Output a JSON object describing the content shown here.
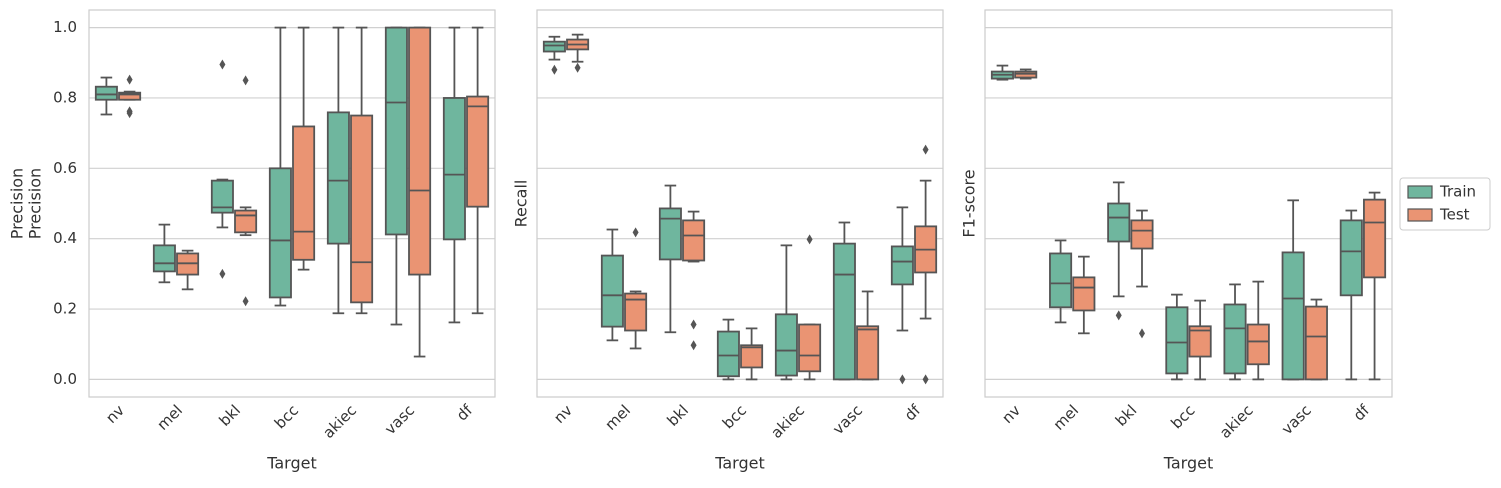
{
  "chart_data": [
    {
      "type": "box",
      "ylabels": [
        "Precision",
        "Precision"
      ],
      "xlabel": "Target",
      "categories": [
        "nv",
        "mel",
        "bkl",
        "bcc",
        "akiec",
        "vasc",
        "df"
      ],
      "ylim": [
        -0.05,
        1.05
      ],
      "yticks": [
        {
          "value": 0,
          "label": "0.0"
        },
        {
          "value": 0.2,
          "label": "0.2"
        },
        {
          "value": 0.4,
          "label": "0.4"
        },
        {
          "value": 0.6,
          "label": "0.6"
        },
        {
          "value": 0.8,
          "label": "0.8"
        },
        {
          "value": 1,
          "label": "1.0"
        }
      ],
      "grid": true,
      "series": [
        {
          "color": "#6fb69e",
          "boxes": [
            {
              "whislo": 0.753,
              "q1": 0.795,
              "med": 0.81,
              "q3": 0.832,
              "whishi": 0.858,
              "fliers": []
            },
            {
              "whislo": 0.276,
              "q1": 0.307,
              "med": 0.33,
              "q3": 0.381,
              "whishi": 0.44,
              "fliers": []
            },
            {
              "whislo": 0.432,
              "q1": 0.474,
              "med": 0.489,
              "q3": 0.565,
              "whishi": 0.568,
              "fliers": [
                0.895,
                0.3
              ]
            },
            {
              "whislo": 0.21,
              "q1": 0.233,
              "med": 0.395,
              "q3": 0.6,
              "whishi": 1,
              "fliers": []
            },
            {
              "whislo": 0.188,
              "q1": 0.386,
              "med": 0.565,
              "q3": 0.759,
              "whishi": 1,
              "fliers": []
            },
            {
              "whislo": 0.156,
              "q1": 0.412,
              "med": 0.787,
              "q3": 1,
              "whishi": 1,
              "fliers": []
            },
            {
              "whislo": 0.162,
              "q1": 0.398,
              "med": 0.582,
              "q3": 0.8,
              "whishi": 1,
              "fliers": []
            }
          ]
        },
        {
          "color": "#ea9473",
          "boxes": [
            {
              "whislo": 0.795,
              "q1": 0.795,
              "med": 0.81,
              "q3": 0.815,
              "whishi": 0.818,
              "fliers": [
                0.852,
                0.762,
                0.757
              ]
            },
            {
              "whislo": 0.256,
              "q1": 0.298,
              "med": 0.33,
              "q3": 0.358,
              "whishi": 0.366,
              "fliers": []
            },
            {
              "whislo": 0.41,
              "q1": 0.418,
              "med": 0.466,
              "q3": 0.48,
              "whishi": 0.489,
              "fliers": [
                0.85,
                0.222
              ]
            },
            {
              "whislo": 0.312,
              "q1": 0.34,
              "med": 0.42,
              "q3": 0.719,
              "whishi": 1,
              "fliers": []
            },
            {
              "whislo": 0.188,
              "q1": 0.219,
              "med": 0.333,
              "q3": 0.75,
              "whishi": 1,
              "fliers": []
            },
            {
              "whislo": 0.065,
              "q1": 0.298,
              "med": 0.537,
              "q3": 1,
              "whishi": 1,
              "fliers": []
            },
            {
              "whislo": 0.188,
              "q1": 0.491,
              "med": 0.776,
              "q3": 0.804,
              "whishi": 1,
              "fliers": []
            }
          ]
        }
      ]
    },
    {
      "type": "box",
      "ylabels": [
        "Recall"
      ],
      "xlabel": "Target",
      "categories": [
        "nv",
        "mel",
        "bkl",
        "bcc",
        "akiec",
        "vasc",
        "df"
      ],
      "ylim": [
        -0.05,
        1.05
      ],
      "yticks": [
        0,
        0.2,
        0.4,
        0.6,
        0.8,
        1
      ],
      "grid": true,
      "series": [
        {
          "color": "#6fb69e",
          "boxes": [
            {
              "whislo": 0.909,
              "q1": 0.932,
              "med": 0.949,
              "q3": 0.96,
              "whishi": 0.974,
              "fliers": [
                0.88
              ]
            },
            {
              "whislo": 0.111,
              "q1": 0.15,
              "med": 0.239,
              "q3": 0.352,
              "whishi": 0.426,
              "fliers": []
            },
            {
              "whislo": 0.134,
              "q1": 0.341,
              "med": 0.457,
              "q3": 0.486,
              "whishi": 0.551,
              "fliers": []
            },
            {
              "whislo": 0,
              "q1": 0.009,
              "med": 0.068,
              "q3": 0.136,
              "whishi": 0.17,
              "fliers": []
            },
            {
              "whislo": 0,
              "q1": 0.011,
              "med": 0.082,
              "q3": 0.185,
              "whishi": 0.381,
              "fliers": []
            },
            {
              "whislo": 0,
              "q1": 0,
              "med": 0.298,
              "q3": 0.386,
              "whishi": 0.446,
              "fliers": []
            },
            {
              "whislo": 0.139,
              "q1": 0.27,
              "med": 0.335,
              "q3": 0.378,
              "whishi": 0.489,
              "fliers": [
                0
              ]
            }
          ]
        },
        {
          "color": "#ea9473",
          "boxes": [
            {
              "whislo": 0.903,
              "q1": 0.938,
              "med": 0.952,
              "q3": 0.966,
              "whishi": 0.98,
              "fliers": [
                0.886
              ]
            },
            {
              "whislo": 0.088,
              "q1": 0.139,
              "med": 0.227,
              "q3": 0.244,
              "whishi": 0.25,
              "fliers": [
                0.418
              ]
            },
            {
              "whislo": 0.335,
              "q1": 0.338,
              "med": 0.409,
              "q3": 0.452,
              "whishi": 0.477,
              "fliers": [
                0.156,
                0.097
              ]
            },
            {
              "whislo": 0,
              "q1": 0.034,
              "med": 0.091,
              "q3": 0.097,
              "whishi": 0.145,
              "fliers": []
            },
            {
              "whislo": 0,
              "q1": 0.023,
              "med": 0.068,
              "q3": 0.156,
              "whishi": 0.156,
              "fliers": [
                0.398
              ]
            },
            {
              "whislo": 0,
              "q1": 0,
              "med": 0.142,
              "q3": 0.151,
              "whishi": 0.25,
              "fliers": []
            },
            {
              "whislo": 0.173,
              "q1": 0.304,
              "med": 0.369,
              "q3": 0.435,
              "whishi": 0.565,
              "fliers": [
                0.653,
                0
              ]
            }
          ]
        }
      ]
    },
    {
      "type": "box",
      "ylabels": [
        "F1-score"
      ],
      "xlabel": "Target",
      "categories": [
        "nv",
        "mel",
        "bkl",
        "bcc",
        "akiec",
        "vasc",
        "df"
      ],
      "ylim": [
        -0.05,
        1.05
      ],
      "yticks": [
        0,
        0.2,
        0.4,
        0.6,
        0.8,
        1
      ],
      "grid": true,
      "legend": "right",
      "series": [
        {
          "name": "Train",
          "color": "#6fb69e",
          "boxes": [
            {
              "whislo": 0.852,
              "q1": 0.855,
              "med": 0.866,
              "q3": 0.875,
              "whishi": 0.892,
              "fliers": []
            },
            {
              "whislo": 0.162,
              "q1": 0.205,
              "med": 0.273,
              "q3": 0.358,
              "whishi": 0.395,
              "fliers": []
            },
            {
              "whislo": 0.236,
              "q1": 0.392,
              "med": 0.46,
              "q3": 0.5,
              "whishi": 0.56,
              "fliers": [
                0.182
              ]
            },
            {
              "whislo": 0,
              "q1": 0.017,
              "med": 0.105,
              "q3": 0.205,
              "whishi": 0.241,
              "fliers": []
            },
            {
              "whislo": 0,
              "q1": 0.017,
              "med": 0.145,
              "q3": 0.213,
              "whishi": 0.27,
              "fliers": []
            },
            {
              "whislo": 0,
              "q1": 0,
              "med": 0.23,
              "q3": 0.361,
              "whishi": 0.509,
              "fliers": []
            },
            {
              "whislo": 0,
              "q1": 0.239,
              "med": 0.364,
              "q3": 0.452,
              "whishi": 0.48,
              "fliers": []
            }
          ]
        },
        {
          "name": "Test",
          "color": "#ea9473",
          "boxes": [
            {
              "whislo": 0.855,
              "q1": 0.858,
              "med": 0.869,
              "q3": 0.875,
              "whishi": 0.881,
              "fliers": []
            },
            {
              "whislo": 0.131,
              "q1": 0.196,
              "med": 0.261,
              "q3": 0.29,
              "whishi": 0.349,
              "fliers": []
            },
            {
              "whislo": 0.264,
              "q1": 0.372,
              "med": 0.423,
              "q3": 0.452,
              "whishi": 0.48,
              "fliers": [
                0.131
              ]
            },
            {
              "whislo": 0,
              "q1": 0.065,
              "med": 0.139,
              "q3": 0.151,
              "whishi": 0.224,
              "fliers": []
            },
            {
              "whislo": 0,
              "q1": 0.043,
              "med": 0.108,
              "q3": 0.156,
              "whishi": 0.278,
              "fliers": []
            },
            {
              "whislo": 0,
              "q1": 0,
              "med": 0.122,
              "q3": 0.207,
              "whishi": 0.227,
              "fliers": []
            },
            {
              "whislo": 0,
              "q1": 0.29,
              "med": 0.446,
              "q3": 0.511,
              "whishi": 0.531,
              "fliers": []
            }
          ]
        }
      ]
    }
  ]
}
